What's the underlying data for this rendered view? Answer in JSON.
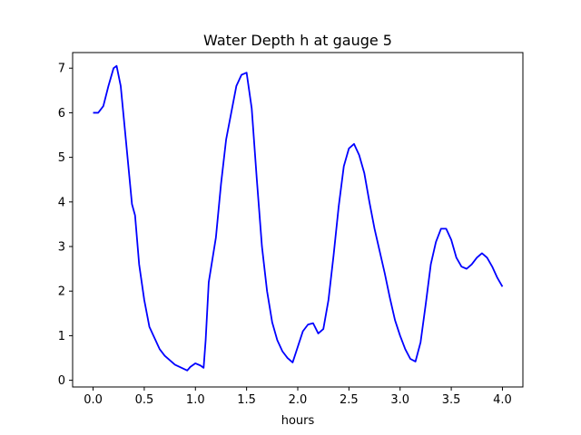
{
  "chart_data": {
    "type": "line",
    "title": "Water Depth h at gauge 5",
    "xlabel": "hours",
    "ylabel": "",
    "xlim": [
      -0.2,
      4.2
    ],
    "ylim": [
      -0.15,
      7.35
    ],
    "xticks": [
      0.0,
      0.5,
      1.0,
      1.5,
      2.0,
      2.5,
      3.0,
      3.5,
      4.0
    ],
    "xtick_labels": [
      "0.0",
      "0.5",
      "1.0",
      "1.5",
      "2.0",
      "2.5",
      "3.0",
      "3.5",
      "4.0"
    ],
    "yticks": [
      0,
      1,
      2,
      3,
      4,
      5,
      6,
      7
    ],
    "ytick_labels": [
      "0",
      "1",
      "2",
      "3",
      "4",
      "5",
      "6",
      "7"
    ],
    "grid": false,
    "series": [
      {
        "color": "#0000ff",
        "x": [
          0.0,
          0.05,
          0.1,
          0.15,
          0.2,
          0.23,
          0.27,
          0.32,
          0.38,
          0.41,
          0.45,
          0.5,
          0.55,
          0.6,
          0.65,
          0.7,
          0.8,
          0.92,
          0.95,
          1.0,
          1.05,
          1.08,
          1.1,
          1.13,
          1.2,
          1.25,
          1.3,
          1.4,
          1.45,
          1.5,
          1.55,
          1.6,
          1.65,
          1.7,
          1.75,
          1.8,
          1.85,
          1.9,
          1.95,
          2.0,
          2.05,
          2.1,
          2.15,
          2.2,
          2.25,
          2.3,
          2.35,
          2.4,
          2.45,
          2.5,
          2.55,
          2.6,
          2.65,
          2.7,
          2.75,
          2.8,
          2.85,
          2.9,
          2.95,
          3.0,
          3.05,
          3.1,
          3.15,
          3.2,
          3.25,
          3.3,
          3.35,
          3.4,
          3.45,
          3.5,
          3.55,
          3.6,
          3.65,
          3.7,
          3.75,
          3.8,
          3.85,
          3.9,
          3.95,
          4.0
        ],
        "y": [
          6.0,
          6.0,
          6.15,
          6.6,
          7.0,
          7.05,
          6.6,
          5.4,
          3.95,
          3.7,
          2.6,
          1.8,
          1.2,
          0.95,
          0.7,
          0.55,
          0.35,
          0.22,
          0.3,
          0.38,
          0.33,
          0.28,
          0.9,
          2.2,
          3.2,
          4.4,
          5.4,
          6.6,
          6.85,
          6.9,
          6.1,
          4.5,
          3.0,
          2.0,
          1.3,
          0.9,
          0.65,
          0.5,
          0.4,
          0.75,
          1.1,
          1.25,
          1.28,
          1.05,
          1.15,
          1.8,
          2.8,
          3.9,
          4.8,
          5.2,
          5.3,
          5.05,
          4.65,
          4.0,
          3.4,
          2.9,
          2.4,
          1.85,
          1.35,
          1.0,
          0.7,
          0.48,
          0.42,
          0.85,
          1.7,
          2.6,
          3.1,
          3.4,
          3.4,
          3.15,
          2.75,
          2.55,
          2.5,
          2.6,
          2.75,
          2.85,
          2.75,
          2.55,
          2.3,
          2.1
        ]
      }
    ]
  }
}
